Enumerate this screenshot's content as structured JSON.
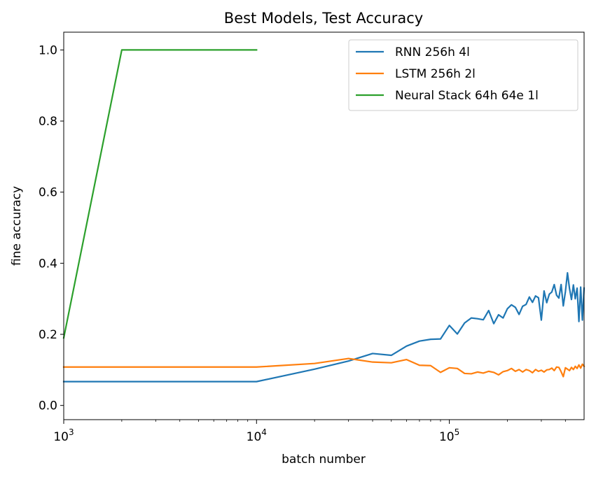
{
  "chart_data": {
    "type": "line",
    "title": "Best Models, Test Accuracy",
    "xlabel": "batch number",
    "ylabel": "fine accuracy",
    "xscale": "log",
    "xlim": [
      1000,
      500000
    ],
    "ylim": [
      -0.04,
      1.05
    ],
    "yticks": [
      0.0,
      0.2,
      0.4,
      0.6,
      0.8,
      1.0
    ],
    "ytick_labels": [
      "0.0",
      "0.2",
      "0.4",
      "0.6",
      "0.8",
      "1.0"
    ],
    "xticks": [
      1000,
      10000,
      100000
    ],
    "xtick_labels": [
      {
        "base": "10",
        "exp": "3"
      },
      {
        "base": "10",
        "exp": "4"
      },
      {
        "base": "10",
        "exp": "5"
      }
    ],
    "grid": false,
    "legend_position": "top-right",
    "series": [
      {
        "name": "RNN 256h 4l",
        "color": "#1f77b4",
        "x": [
          1000,
          10000,
          20000,
          30000,
          40000,
          50000,
          60000,
          70000,
          80000,
          90000,
          100000,
          110000,
          120000,
          130000,
          140000,
          150000,
          160000,
          170000,
          180000,
          190000,
          200000,
          210000,
          220000,
          230000,
          240000,
          250000,
          260000,
          270000,
          280000,
          290000,
          300000,
          310000,
          320000,
          330000,
          340000,
          350000,
          360000,
          370000,
          380000,
          390000,
          400000,
          410000,
          420000,
          430000,
          440000,
          450000,
          460000,
          470000,
          480000,
          490000,
          500000
        ],
        "y": [
          0.067,
          0.067,
          0.102,
          0.125,
          0.146,
          0.141,
          0.167,
          0.181,
          0.186,
          0.187,
          0.225,
          0.201,
          0.232,
          0.246,
          0.244,
          0.241,
          0.267,
          0.23,
          0.255,
          0.246,
          0.272,
          0.283,
          0.276,
          0.256,
          0.279,
          0.284,
          0.305,
          0.29,
          0.308,
          0.303,
          0.24,
          0.322,
          0.289,
          0.313,
          0.319,
          0.34,
          0.31,
          0.302,
          0.34,
          0.28,
          0.32,
          0.373,
          0.329,
          0.298,
          0.339,
          0.3,
          0.33,
          0.236,
          0.333,
          0.24,
          0.33
        ]
      },
      {
        "name": "LSTM 256h 2l",
        "color": "#ff7f0e",
        "x": [
          1000,
          10000,
          20000,
          30000,
          40000,
          50000,
          60000,
          70000,
          80000,
          90000,
          100000,
          110000,
          120000,
          130000,
          140000,
          150000,
          160000,
          170000,
          180000,
          190000,
          200000,
          210000,
          220000,
          230000,
          240000,
          250000,
          260000,
          270000,
          280000,
          290000,
          300000,
          310000,
          320000,
          330000,
          340000,
          350000,
          360000,
          370000,
          380000,
          390000,
          400000,
          410000,
          420000,
          430000,
          440000,
          450000,
          460000,
          470000,
          480000,
          490000,
          500000
        ],
        "y": [
          0.108,
          0.108,
          0.118,
          0.132,
          0.122,
          0.12,
          0.129,
          0.113,
          0.112,
          0.093,
          0.106,
          0.104,
          0.09,
          0.089,
          0.094,
          0.091,
          0.096,
          0.093,
          0.086,
          0.095,
          0.098,
          0.104,
          0.096,
          0.101,
          0.094,
          0.101,
          0.098,
          0.092,
          0.101,
          0.096,
          0.099,
          0.094,
          0.1,
          0.101,
          0.105,
          0.098,
          0.108,
          0.107,
          0.095,
          0.081,
          0.106,
          0.102,
          0.098,
          0.107,
          0.101,
          0.11,
          0.104,
          0.114,
          0.105,
          0.116,
          0.11
        ]
      },
      {
        "name": "Neural Stack 64h 64e 1l",
        "color": "#2ca02c",
        "x": [
          1000,
          2000,
          10000
        ],
        "y": [
          0.19,
          1.0,
          1.0
        ]
      }
    ]
  }
}
